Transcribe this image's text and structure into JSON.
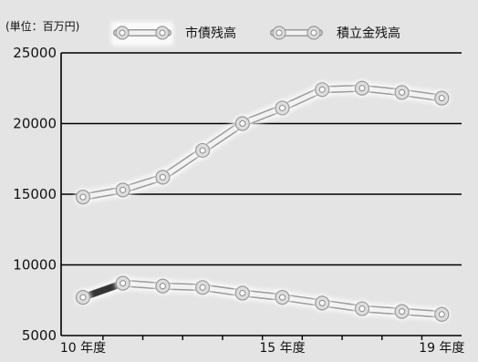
{
  "chart_data": {
    "type": "line",
    "unit_label": "(単位：百万円)",
    "x": [
      10,
      11,
      12,
      13,
      14,
      15,
      16,
      17,
      18,
      19
    ],
    "x_tick_labels": [
      {
        "x": 10,
        "label": "10 年度"
      },
      {
        "x": 15,
        "label": "15 年度"
      },
      {
        "x": 19,
        "label": "19 年度"
      }
    ],
    "ylim": [
      5000,
      25000
    ],
    "yticks": [
      5000,
      10000,
      15000,
      20000,
      25000
    ],
    "grid": true,
    "legend_position": "top",
    "series": [
      {
        "name": "市債残高",
        "color": "#f2f2f2",
        "marker": "circle",
        "values": [
          14800,
          15300,
          16200,
          18100,
          20000,
          21100,
          22400,
          22500,
          22200,
          21800
        ]
      },
      {
        "name": "積立金残高",
        "color": "#f2f2f2",
        "marker": "circle",
        "first_segment_color": "#333333",
        "values": [
          7700,
          8700,
          8500,
          8400,
          8000,
          7700,
          7300,
          6900,
          6700,
          6500
        ]
      }
    ]
  }
}
